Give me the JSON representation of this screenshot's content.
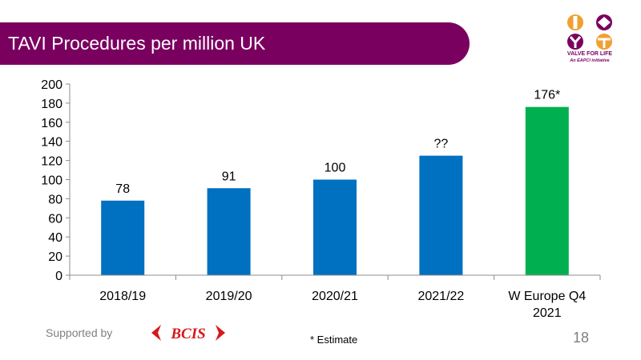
{
  "slide": {
    "title": "TAVI Procedures per million UK",
    "supported_by": "Supported by",
    "sponsor_logo_text": "BCIS",
    "footnote": "* Estimate",
    "page_number": "18"
  },
  "logo": {
    "line1": "VALVE FOR LIFE",
    "line2": "An EAPCI initiative"
  },
  "colors": {
    "title_bar": "#7a0060",
    "bar_primary": "#0070c0",
    "bar_highlight": "#00b050",
    "logo_orange": "#f0a030",
    "logo_purple": "#7a0060",
    "bcis_red": "#d7191c"
  },
  "chart_data": {
    "type": "bar",
    "categories": [
      "2018/19",
      "2019/20",
      "2020/21",
      "2021/22",
      "W Europe Q4 2021"
    ],
    "values": [
      78,
      91,
      100,
      125,
      176
    ],
    "data_labels": [
      "78",
      "91",
      "100",
      "??",
      "176*"
    ],
    "bar_colors": [
      "#0070c0",
      "#0070c0",
      "#0070c0",
      "#0070c0",
      "#00b050"
    ],
    "ylim": [
      0,
      200
    ],
    "yticks": [
      0,
      20,
      40,
      60,
      80,
      100,
      120,
      140,
      160,
      180,
      200
    ],
    "title": "",
    "xlabel": "",
    "ylabel": "",
    "grid": false,
    "legend": "none"
  }
}
